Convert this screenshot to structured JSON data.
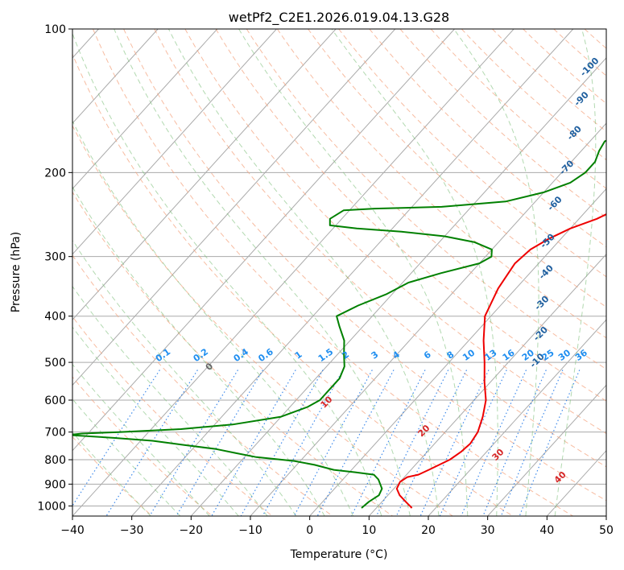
{
  "chart_data": {
    "type": "line",
    "title": "wetPf2_C2E1.2026.019.04.13.G28",
    "xlabel": "Temperature (°C)",
    "ylabel": "Pressure (hPa)",
    "xlim": [
      -40,
      50
    ],
    "ylim": [
      1050,
      100
    ],
    "y_scale": "log",
    "grid": true,
    "x_ticks": [
      -40,
      -30,
      -20,
      -10,
      0,
      10,
      20,
      30,
      40,
      50
    ],
    "y_ticks": [
      100,
      200,
      300,
      400,
      500,
      600,
      700,
      800,
      900,
      1000
    ],
    "dry_adiabat_labels": [
      {
        "text": "-100",
        "T": -21.5,
        "p": 120
      },
      {
        "text": "-90",
        "T": -18.0,
        "p": 140
      },
      {
        "text": "-80",
        "T": -14.0,
        "p": 165
      },
      {
        "text": "-70",
        "T": -10.0,
        "p": 195
      },
      {
        "text": "-60",
        "T": -6.5,
        "p": 232
      },
      {
        "text": "-50",
        "T": -2.0,
        "p": 278
      },
      {
        "text": "-40",
        "T": 2.5,
        "p": 323
      },
      {
        "text": "-30",
        "T": 6.5,
        "p": 375
      },
      {
        "text": "-20",
        "T": 11.0,
        "p": 435
      },
      {
        "text": "-10",
        "T": 14.5,
        "p": 495
      }
    ],
    "mixing_ratio_labels": [
      "0.1",
      "0.2",
      "0.4",
      "0.6",
      "1",
      "1.5",
      "2",
      "3",
      "4",
      "6",
      "8",
      "10",
      "13",
      "16",
      "20",
      "25",
      "30",
      "36"
    ],
    "moist_adiabat_labels": [
      "0",
      "10",
      "20",
      "30",
      "40"
    ],
    "series": [
      {
        "color": "#ee0000",
        "points": [
          [
            16,
            1010
          ],
          [
            14,
            980
          ],
          [
            12,
            950
          ],
          [
            10.5,
            920
          ],
          [
            10,
            890
          ],
          [
            10.5,
            870
          ],
          [
            12,
            860
          ],
          [
            13,
            840
          ],
          [
            14,
            820
          ],
          [
            15,
            800
          ],
          [
            15.7,
            770
          ],
          [
            16,
            740
          ],
          [
            15.5,
            700
          ],
          [
            14,
            650
          ],
          [
            12,
            600
          ],
          [
            9,
            550
          ],
          [
            6,
            500
          ],
          [
            2.5,
            450
          ],
          [
            -1,
            400
          ],
          [
            -3,
            350
          ],
          [
            -4,
            310
          ],
          [
            -3.5,
            290
          ],
          [
            -2,
            275
          ],
          [
            0,
            262
          ],
          [
            3,
            250
          ],
          [
            5,
            238
          ],
          [
            5.5,
            225
          ],
          [
            6,
            210
          ],
          [
            7,
            200
          ],
          [
            9.5,
            190
          ],
          [
            11,
            180
          ],
          [
            12,
            170
          ],
          [
            12,
            160
          ],
          [
            12,
            150
          ],
          [
            12.5,
            140
          ],
          [
            13.5,
            130
          ],
          [
            15,
            120
          ],
          [
            15.7,
            110
          ],
          [
            16.5,
            100
          ]
        ]
      },
      {
        "color": "#008000",
        "points": [
          [
            7.5,
            1010
          ],
          [
            7.8,
            980
          ],
          [
            8.5,
            950
          ],
          [
            8,
            920
          ],
          [
            7,
            900
          ],
          [
            6,
            880
          ],
          [
            4.5,
            860
          ],
          [
            1,
            850
          ],
          [
            -3,
            840
          ],
          [
            -7,
            820
          ],
          [
            -11,
            805
          ],
          [
            -18,
            790
          ],
          [
            -22,
            775
          ],
          [
            -26,
            760
          ],
          [
            -32,
            745
          ],
          [
            -38,
            730
          ],
          [
            -45,
            720
          ],
          [
            -53,
            710
          ],
          [
            -51,
            705
          ],
          [
            -45,
            700
          ],
          [
            -35,
            690
          ],
          [
            -27,
            675
          ],
          [
            -20,
            650
          ],
          [
            -17,
            620
          ],
          [
            -16,
            600
          ],
          [
            -16,
            570
          ],
          [
            -16,
            540
          ],
          [
            -17,
            510
          ],
          [
            -19,
            480
          ],
          [
            -21,
            450
          ],
          [
            -24,
            420
          ],
          [
            -26,
            400
          ],
          [
            -24,
            380
          ],
          [
            -21,
            360
          ],
          [
            -19,
            340
          ],
          [
            -15,
            325
          ],
          [
            -10,
            310
          ],
          [
            -9,
            300
          ],
          [
            -10,
            290
          ],
          [
            -14,
            280
          ],
          [
            -20,
            272
          ],
          [
            -28,
            266
          ],
          [
            -36,
            262
          ],
          [
            -41,
            258
          ],
          [
            -42,
            250
          ],
          [
            -41,
            240
          ],
          [
            -36,
            238
          ],
          [
            -25,
            236
          ],
          [
            -15,
            230
          ],
          [
            -10,
            220
          ],
          [
            -7,
            210
          ],
          [
            -6,
            200
          ],
          [
            -6,
            190
          ],
          [
            -7,
            180
          ],
          [
            -7.5,
            172
          ],
          [
            -5.5,
            165
          ],
          [
            -3,
            158
          ],
          [
            -1,
            150
          ],
          [
            0,
            140
          ],
          [
            -0.5,
            130
          ],
          [
            -2.5,
            122
          ],
          [
            -3,
            114
          ],
          [
            -1,
            108
          ],
          [
            0,
            104
          ],
          [
            0,
            100
          ]
        ]
      }
    ]
  }
}
